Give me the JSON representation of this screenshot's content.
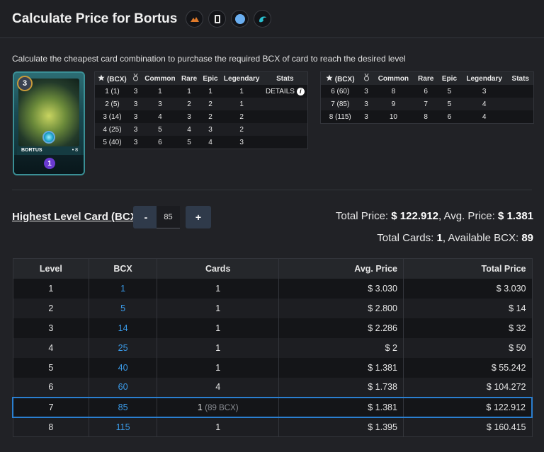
{
  "header": {
    "title": "Calculate Price for Bortus",
    "icons": [
      "fire-splinter-icon",
      "edition-icon",
      "common-rarity-icon",
      "water-element-icon"
    ]
  },
  "subtitle": "Calculate the cheapest card combination to purchase the required BCX of card to reach the desired level",
  "card": {
    "name": "BORTUS",
    "level": "3",
    "mana": "1",
    "edition_mark": "• 8"
  },
  "stats_table": {
    "headers": [
      "(BCX)",
      "Common",
      "Rare",
      "Epic",
      "Legendary",
      "Stats"
    ],
    "rows": [
      [
        "1 (1)",
        "3",
        "1",
        "1",
        "1",
        "DETAILS"
      ],
      [
        "2 (5)",
        "3",
        "3",
        "2",
        "2",
        "1"
      ],
      [
        "3 (14)",
        "3",
        "4",
        "3",
        "2",
        "2"
      ],
      [
        "4 (25)",
        "3",
        "5",
        "4",
        "3",
        "2"
      ],
      [
        "5 (40)",
        "3",
        "6",
        "5",
        "4",
        "3"
      ]
    ],
    "rows_right": [
      [
        "6 (60)",
        "3",
        "8",
        "6",
        "5",
        "3"
      ],
      [
        "7 (85)",
        "3",
        "9",
        "7",
        "5",
        "4"
      ],
      [
        "8 (115)",
        "3",
        "10",
        "8",
        "6",
        "4"
      ]
    ]
  },
  "highest_level": {
    "label": "Highest Level Card (BCX)",
    "minus": "-",
    "plus": "+",
    "value": "85"
  },
  "totals": {
    "price_label": "Total Price:",
    "price": "$ 122.912",
    "avg_label": ", Avg. Price:",
    "avg": "$ 1.381",
    "cards_label": "Total Cards:",
    "cards": "1",
    "bcx_label": ", Available BCX:",
    "bcx": "89"
  },
  "main_table": {
    "headers": [
      "Level",
      "BCX",
      "Cards",
      "Avg. Price",
      "Total Price"
    ],
    "rows": [
      {
        "level": "1",
        "bcx": "1",
        "cards": "1",
        "note": "",
        "avg": "$ 3.030",
        "total": "$ 3.030"
      },
      {
        "level": "2",
        "bcx": "5",
        "cards": "1",
        "note": "",
        "avg": "$ 2.800",
        "total": "$ 14"
      },
      {
        "level": "3",
        "bcx": "14",
        "cards": "1",
        "note": "",
        "avg": "$ 2.286",
        "total": "$ 32"
      },
      {
        "level": "4",
        "bcx": "25",
        "cards": "1",
        "note": "",
        "avg": "$ 2",
        "total": "$ 50"
      },
      {
        "level": "5",
        "bcx": "40",
        "cards": "1",
        "note": "",
        "avg": "$ 1.381",
        "total": "$ 55.242"
      },
      {
        "level": "6",
        "bcx": "60",
        "cards": "4",
        "note": "",
        "avg": "$ 1.738",
        "total": "$ 104.272"
      },
      {
        "level": "7",
        "bcx": "85",
        "cards": "1",
        "note": "(89 BCX)",
        "avg": "$ 1.381",
        "total": "$ 122.912"
      },
      {
        "level": "8",
        "bcx": "115",
        "cards": "1",
        "note": "",
        "avg": "$ 1.395",
        "total": "$ 160.415"
      }
    ]
  },
  "colors": {
    "accent": "#3a9ae8",
    "selected_border": "#2a7fd0",
    "background": "#212226"
  }
}
